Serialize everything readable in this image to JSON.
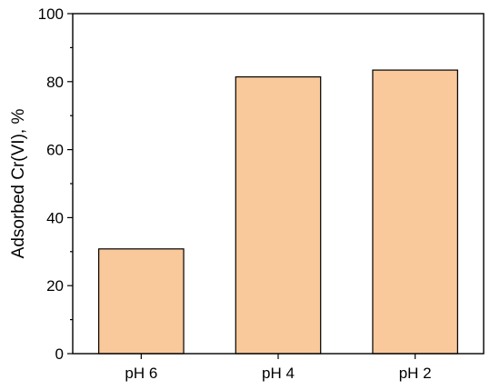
{
  "chart_data": {
    "type": "bar",
    "categories": [
      "pH 6",
      "pH 4",
      "pH 2"
    ],
    "values": [
      30.8,
      81.4,
      83.4
    ],
    "ylabel": "Adsorbed Cr(VI), %",
    "xlabel": "",
    "ylim": [
      0,
      100
    ],
    "yticks": [
      0,
      20,
      40,
      60,
      80,
      100
    ],
    "yticklabels": [
      "0",
      "20",
      "40",
      "60",
      "80",
      "100"
    ],
    "grid": false,
    "legend": "none",
    "colors": {
      "bar_fill": "#f9c89b",
      "bar_edge": "#000000",
      "axis": "#000000"
    }
  }
}
